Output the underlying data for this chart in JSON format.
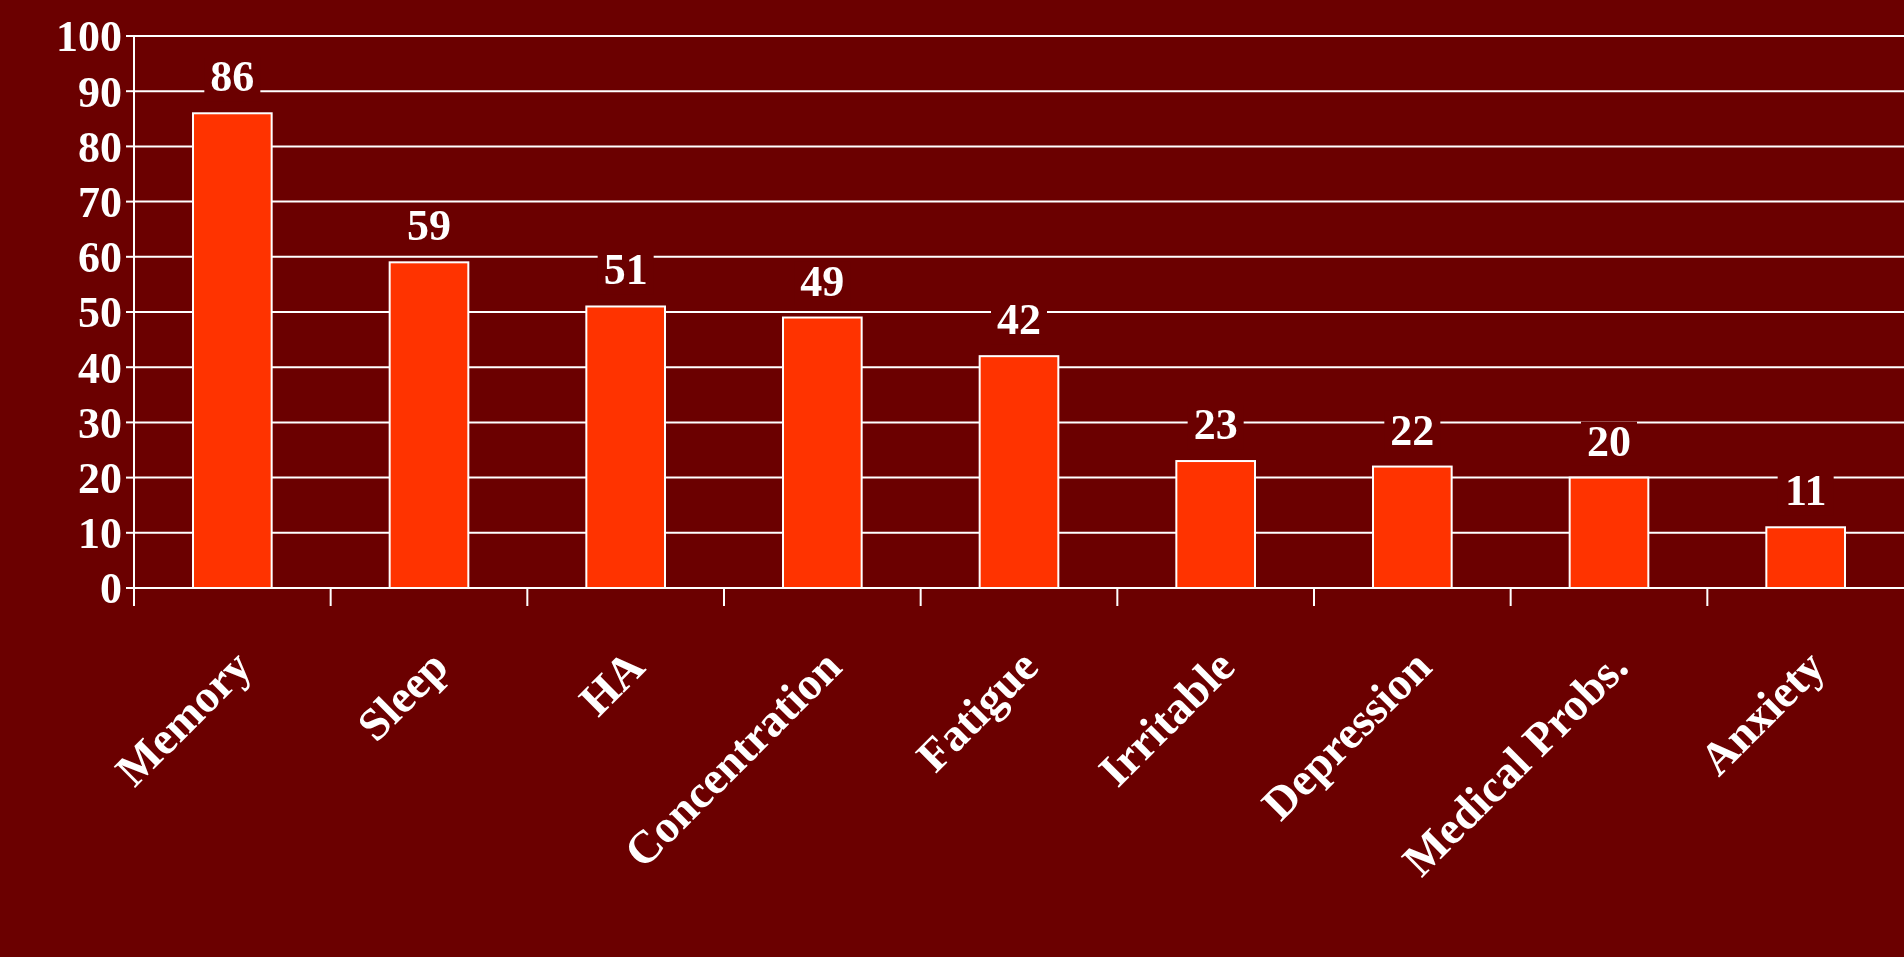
{
  "chart_data": {
    "type": "bar",
    "categories": [
      "Memory",
      "Sleep",
      "HA",
      "Concentration",
      "Fatigue",
      "Irritable",
      "Depression",
      "Medical Probs.",
      "Anxiety"
    ],
    "values": [
      86,
      59,
      51,
      49,
      42,
      23,
      22,
      20,
      11
    ],
    "color": "#ff3300",
    "ylim": [
      0,
      100
    ],
    "yticks": [
      0,
      10,
      20,
      30,
      40,
      50,
      60,
      70,
      80,
      90,
      100
    ],
    "grid": "y",
    "data_labels": true
  }
}
